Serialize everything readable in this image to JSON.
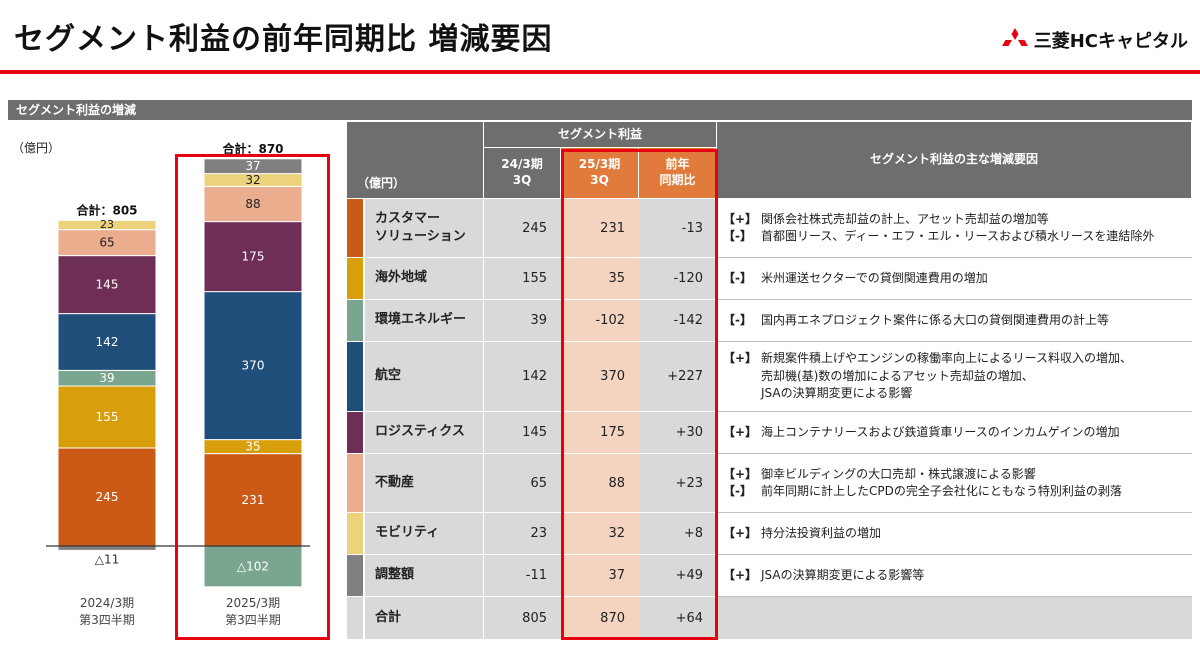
{
  "header": {
    "title": "セグメント利益の前年同期比 増減要因",
    "logo_text": "三菱HCキャピタル",
    "brand_color": "#e60012"
  },
  "section": {
    "label": "セグメント利益の増減"
  },
  "chart_unit": "（億円）",
  "chart_data": {
    "type": "bar",
    "stacked": true,
    "categories": [
      "2024/3期 第3四半期",
      "2025/3期 第3四半期"
    ],
    "category_lines": [
      [
        "2024/3期",
        "第3四半期"
      ],
      [
        "2025/3期",
        "第3四半期"
      ]
    ],
    "totals": [
      "合計：805",
      "合計：870"
    ],
    "total_values": [
      805,
      870
    ],
    "series": [
      {
        "name": "カスタマーソリューション",
        "color": "#cc5a17",
        "values": [
          245,
          231
        ]
      },
      {
        "name": "海外地域",
        "color": "#d99e0b",
        "values": [
          155,
          35
        ]
      },
      {
        "name": "環境エネルギー",
        "color": "#7aa58f",
        "values": [
          39,
          -102
        ]
      },
      {
        "name": "航空",
        "color": "#1f4e7a",
        "values": [
          142,
          370
        ]
      },
      {
        "name": "ロジスティクス",
        "color": "#6e2e55",
        "values": [
          145,
          175
        ]
      },
      {
        "name": "不動産",
        "color": "#eaae8f",
        "values": [
          65,
          88
        ]
      },
      {
        "name": "モビリティ",
        "color": "#ecd27a",
        "values": [
          23,
          32
        ]
      },
      {
        "name": "調整額",
        "color": "#808080",
        "values": [
          -11,
          37
        ]
      }
    ],
    "data_labels": [
      [
        "245",
        "155",
        "39",
        "142",
        "145",
        "65",
        "23",
        "△11"
      ],
      [
        "231",
        "35",
        "△102",
        "370",
        "175",
        "88",
        "32",
        "37"
      ]
    ],
    "highlight_category": "2025/3期 第3四半期"
  },
  "table": {
    "unit": "（億円）",
    "group_header": "セグメント利益",
    "col_prev": "24/3期\n3Q",
    "col_curr": "25/3期\n3Q",
    "col_diff": "前年\n同期比",
    "col_factors": "セグメント利益の主な増減要因",
    "rows": [
      {
        "name": "カスタマー\nソリューション",
        "prev": "245",
        "curr": "231",
        "diff": "-13",
        "color": "#cc5a17",
        "factors": [
          {
            "tag": "【+】",
            "text": "関係会社株式売却益の計上、アセット売却益の増加等"
          },
          {
            "tag": "【-】",
            "text": "首都圏リース、ディー・エフ・エル・リースおよび積水リースを連結除外"
          }
        ]
      },
      {
        "name": "海外地域",
        "prev": "155",
        "curr": "35",
        "diff": "-120",
        "color": "#d99e0b",
        "factors": [
          {
            "tag": "【-】",
            "text": "米州運送セクターでの貸倒関連費用の増加"
          }
        ]
      },
      {
        "name": "環境エネルギー",
        "prev": "39",
        "curr": "-102",
        "diff": "-142",
        "color": "#7aa58f",
        "factors": [
          {
            "tag": "【-】",
            "text": "国内再エネプロジェクト案件に係る大口の貸倒関連費用の計上等"
          }
        ]
      },
      {
        "name": "航空",
        "prev": "142",
        "curr": "370",
        "diff": "+227",
        "color": "#1f4e7a",
        "factors": [
          {
            "tag": "【+】",
            "text": "新規案件積上げやエンジンの稼働率向上によるリース料収入の増加、"
          },
          {
            "tag": "",
            "text": "売却機(基)数の増加によるアセット売却益の増加、"
          },
          {
            "tag": "",
            "text": "JSAの決算期変更による影響"
          }
        ]
      },
      {
        "name": "ロジスティクス",
        "prev": "145",
        "curr": "175",
        "diff": "+30",
        "color": "#6e2e55",
        "factors": [
          {
            "tag": "【+】",
            "text": "海上コンテナリースおよび鉄道貨車リースのインカムゲインの増加"
          }
        ]
      },
      {
        "name": "不動産",
        "prev": "65",
        "curr": "88",
        "diff": "+23",
        "color": "#eaae8f",
        "factors": [
          {
            "tag": "【+】",
            "text": "御幸ビルディングの大口売却・株式譲渡による影響"
          },
          {
            "tag": "【-】",
            "text": "前年同期に計上したCPDの完全子会社化にともなう特別利益の剥落"
          }
        ]
      },
      {
        "name": "モビリティ",
        "prev": "23",
        "curr": "32",
        "diff": "+8",
        "color": "#ecd27a",
        "factors": [
          {
            "tag": "【+】",
            "text": "持分法投資利益の増加"
          }
        ]
      },
      {
        "name": "調整額",
        "prev": "-11",
        "curr": "37",
        "diff": "+49",
        "color": "#808080",
        "factors": [
          {
            "tag": "【+】",
            "text": "JSAの決算期変更による影響等"
          }
        ]
      }
    ],
    "total_row": {
      "name": "合計",
      "prev": "805",
      "curr": "870",
      "diff": "+64"
    }
  }
}
